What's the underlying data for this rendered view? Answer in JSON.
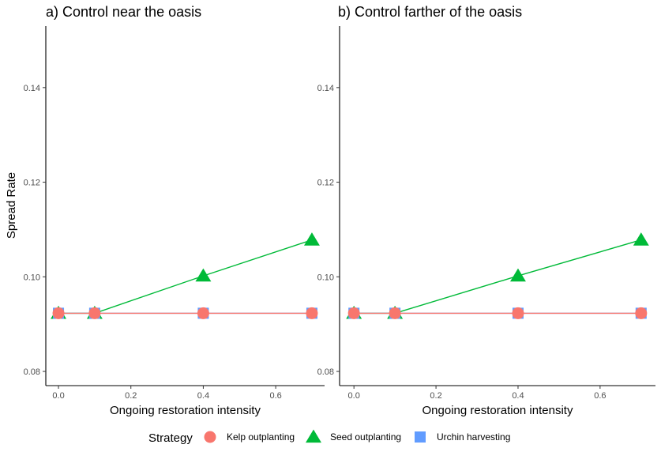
{
  "chart_data": {
    "type": "line",
    "ylabel": "Spread Rate",
    "ylim": [
      0.077,
      0.153
    ],
    "yticks": [
      0.08,
      0.1,
      0.12,
      0.14
    ],
    "ytick_labels": [
      "0.08",
      "0.10",
      "0.12",
      "0.14"
    ],
    "legend": {
      "title": "Strategy",
      "position": "bottom",
      "entries": [
        {
          "label": "Kelp outplanting",
          "color": "#F8766D",
          "shape": "circle"
        },
        {
          "label": "Seed outplanting",
          "color": "#00BA38",
          "shape": "triangle"
        },
        {
          "label": "Urchin harvesting",
          "color": "#619CFF",
          "shape": "square"
        }
      ]
    },
    "panels": [
      {
        "title": "a) Control near the oasis",
        "xlabel": "Ongoing restoration intensity",
        "xlim": [
          -0.035,
          0.735
        ],
        "xticks": [
          0.0,
          0.2,
          0.4,
          0.6
        ],
        "xtick_labels": [
          "0.0",
          "0.2",
          "0.4",
          "0.6"
        ],
        "grid": false,
        "series": [
          {
            "name": "Seed outplanting",
            "color": "#00BA38",
            "shape": "triangle",
            "x": [
              0.0,
              0.1,
              0.4,
              0.7
            ],
            "y": [
              0.0923,
              0.0923,
              0.1002,
              0.1078
            ]
          },
          {
            "name": "Urchin harvesting",
            "color": "#619CFF",
            "shape": "square",
            "x": [
              0.0,
              0.1,
              0.4,
              0.7
            ],
            "y": [
              0.0923,
              0.0923,
              0.0923,
              0.0923
            ]
          },
          {
            "name": "Kelp outplanting",
            "color": "#F8766D",
            "shape": "circle",
            "x": [
              0.0,
              0.1,
              0.4,
              0.7
            ],
            "y": [
              0.0923,
              0.0923,
              0.0923,
              0.0923
            ]
          }
        ]
      },
      {
        "title": "b) Control farther of the oasis",
        "xlabel": "Ongoing restoration intensity",
        "xlim": [
          -0.035,
          0.735
        ],
        "xticks": [
          0.0,
          0.2,
          0.4,
          0.6
        ],
        "xtick_labels": [
          "0.0",
          "0.2",
          "0.4",
          "0.6"
        ],
        "grid": false,
        "series": [
          {
            "name": "Seed outplanting",
            "color": "#00BA38",
            "shape": "triangle",
            "x": [
              0.0,
              0.1,
              0.4,
              0.7
            ],
            "y": [
              0.0923,
              0.0923,
              0.1002,
              0.1078
            ]
          },
          {
            "name": "Urchin harvesting",
            "color": "#619CFF",
            "shape": "square",
            "x": [
              0.0,
              0.1,
              0.4,
              0.7
            ],
            "y": [
              0.0923,
              0.0923,
              0.0923,
              0.0923
            ]
          },
          {
            "name": "Kelp outplanting",
            "color": "#F8766D",
            "shape": "circle",
            "x": [
              0.0,
              0.1,
              0.4,
              0.7
            ],
            "y": [
              0.0923,
              0.0923,
              0.0923,
              0.0923
            ]
          }
        ]
      }
    ]
  }
}
